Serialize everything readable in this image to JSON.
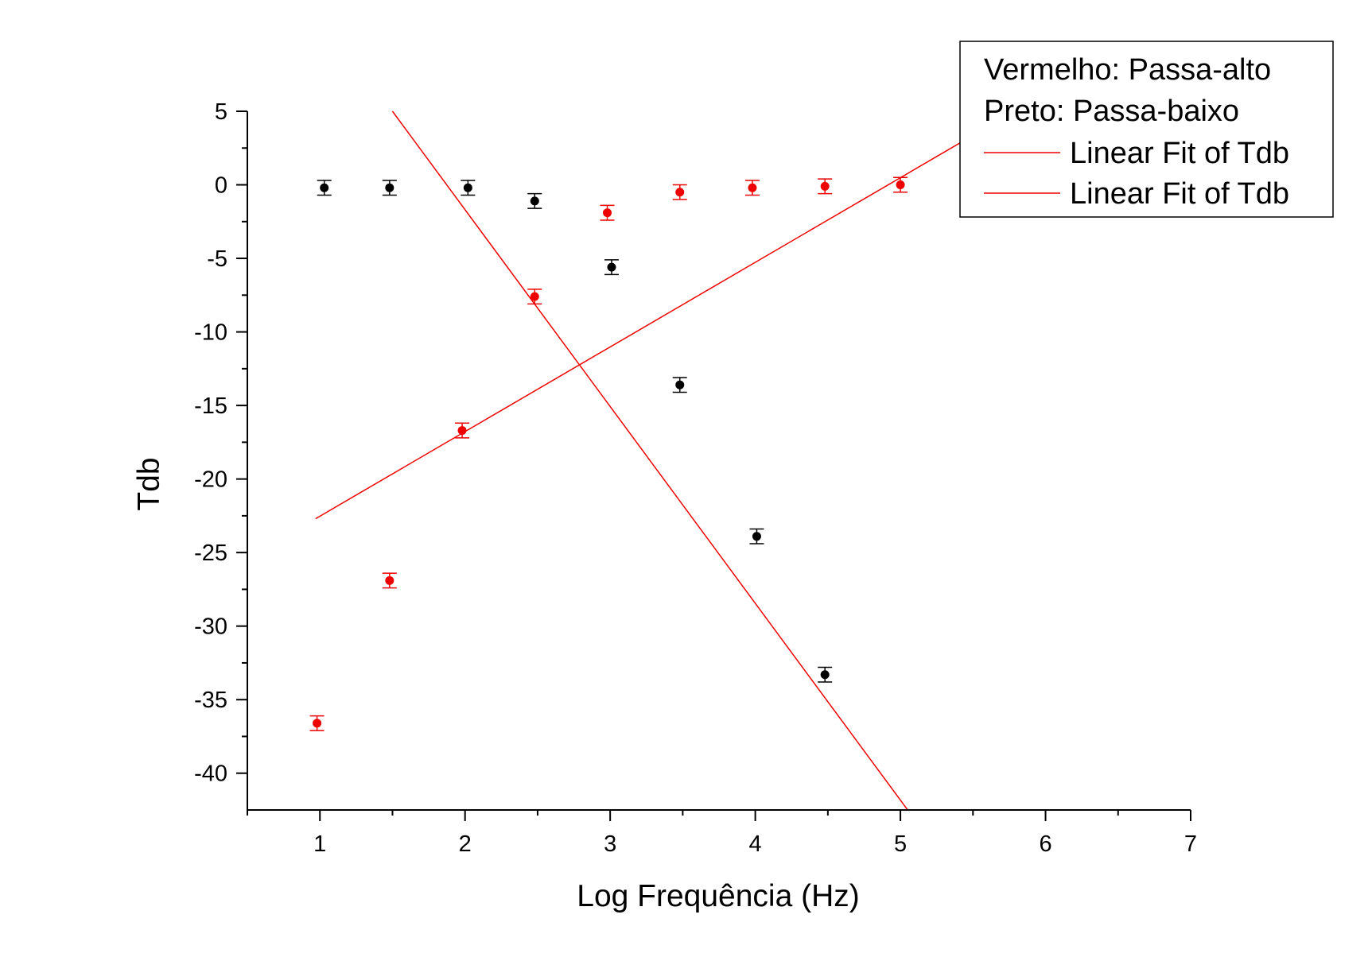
{
  "chart_data": {
    "type": "scatter",
    "xlabel": "Log Frequência (Hz)",
    "ylabel": "Tdb",
    "xlim": [
      0.5,
      7
    ],
    "ylim": [
      -42.5,
      5
    ],
    "x_ticks": [
      1,
      2,
      3,
      4,
      5,
      6,
      7
    ],
    "y_ticks": [
      5,
      0,
      -5,
      -10,
      -15,
      -20,
      -25,
      -30,
      -35,
      -40
    ],
    "grid": false,
    "legend": {
      "placement": "top-right",
      "notes": [
        "Vermelho: Passa-alto",
        "Preto: Passa-baixo"
      ],
      "entries": [
        "Linear Fit of Tdb",
        "Linear Fit of Tdb"
      ]
    },
    "colors": {
      "high_pass": "#ee0000",
      "low_pass": "#000000",
      "fit": "#ee0000"
    },
    "series": [
      {
        "color": "#ee0000",
        "x": [
          0.98,
          1.48,
          1.98,
          2.48,
          2.98,
          3.48,
          3.98,
          4.48,
          5.0
        ],
        "y": [
          -36.6,
          -26.9,
          -16.7,
          -7.6,
          -1.9,
          -0.5,
          -0.2,
          -0.1,
          0.0
        ],
        "yerr": 0.5
      },
      {
        "color": "#000000",
        "x": [
          1.03,
          1.48,
          2.02,
          2.48,
          3.01,
          3.48,
          4.01,
          4.48
        ],
        "y": [
          -0.2,
          -0.2,
          -0.2,
          -1.1,
          -5.6,
          -13.6,
          -23.9,
          -33.3
        ],
        "yerr": 0.5
      }
    ],
    "fits": [
      {
        "x": [
          0.97,
          5.75
        ],
        "y": [
          -22.7,
          4.8
        ]
      },
      {
        "x": [
          1.5,
          5.05
        ],
        "y": [
          5.0,
          -42.5
        ]
      }
    ]
  }
}
